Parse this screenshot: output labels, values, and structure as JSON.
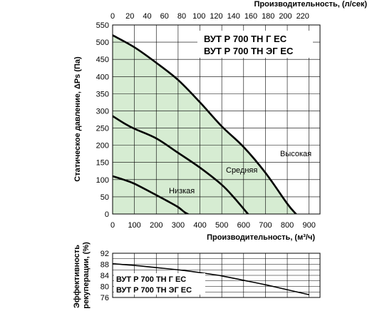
{
  "chart_data": [
    {
      "type": "line",
      "title_lines": [
        "ВУТ Р 700 ТН Г ЕС",
        "ВУТ Р 700 ТН ЭГ ЕС"
      ],
      "xlabel": "Производительность, (м³/ч)",
      "ylabel": "Статическое давление, ΔPs (Па)",
      "x2label": "Производительность, (л/сек)",
      "xlim": [
        0,
        950
      ],
      "ylim": [
        0,
        550
      ],
      "x2lim": [
        0,
        240
      ],
      "x_ticks": [
        0,
        100,
        200,
        300,
        400,
        500,
        600,
        700,
        800,
        900
      ],
      "y_ticks": [
        0,
        50,
        100,
        150,
        200,
        250,
        300,
        350,
        400,
        450,
        500,
        550
      ],
      "x2_ticks": [
        0,
        20,
        40,
        60,
        80,
        100,
        120,
        140,
        160,
        180,
        200,
        220
      ],
      "grid": true,
      "fill_color": "#d6ecd2",
      "line_color": "#000000",
      "series": [
        {
          "name": "Высокая",
          "x": [
            0,
            100,
            200,
            300,
            400,
            500,
            600,
            700,
            800,
            840
          ],
          "y": [
            520,
            485,
            440,
            390,
            325,
            255,
            195,
            120,
            30,
            0
          ]
        },
        {
          "name": "Средняя",
          "x": [
            0,
            50,
            100,
            200,
            300,
            400,
            500,
            560,
            600,
            620
          ],
          "y": [
            285,
            265,
            248,
            220,
            178,
            135,
            85,
            45,
            15,
            0
          ]
        },
        {
          "name": "Низкая",
          "x": [
            0,
            50,
            100,
            200,
            250,
            300,
            330,
            345
          ],
          "y": [
            110,
            100,
            88,
            55,
            38,
            20,
            5,
            0
          ]
        }
      ],
      "curve_labels": [
        "Высокая",
        "Средняя",
        "Низкая"
      ]
    },
    {
      "type": "line",
      "title_lines": [
        "ВУТ Р 700 ТН Г ЕС",
        "ВУТ Р 700 ТН ЭГ ЕС"
      ],
      "ylabel": "Эффективность рекуперации, (%)",
      "xlim": [
        0,
        950
      ],
      "ylim": [
        76,
        92
      ],
      "y_ticks": [
        76,
        80,
        84,
        88,
        92
      ],
      "y_minor_ticks": [
        78,
        82,
        86,
        90
      ],
      "grid": true,
      "line_color": "#000000",
      "series": [
        {
          "name": "",
          "x": [
            0,
            100,
            200,
            300,
            400,
            500,
            600,
            700,
            800,
            900
          ],
          "y": [
            88.2,
            87.6,
            86.8,
            86.0,
            85.0,
            83.8,
            82.2,
            80.6,
            78.8,
            77.0
          ]
        }
      ]
    }
  ]
}
